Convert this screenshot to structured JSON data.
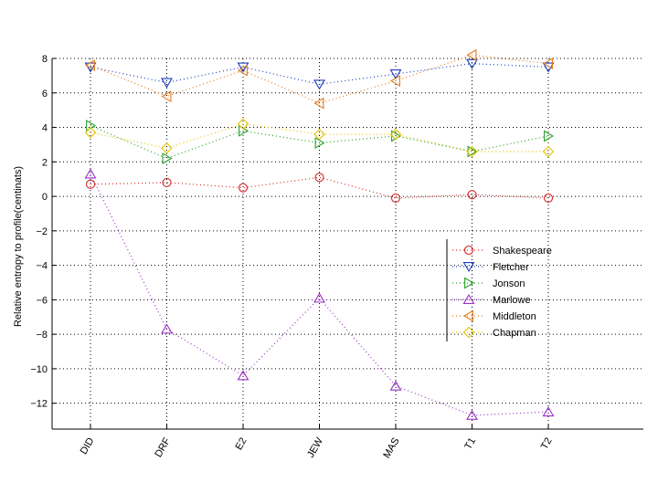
{
  "chart_data": {
    "type": "line",
    "categories": [
      "DID",
      "DRF",
      "E2",
      "JEW",
      "MAS",
      "T1",
      "T2"
    ],
    "ylabel": "Relative entropy to profile(centinats)",
    "ylim": [
      -13.5,
      8
    ],
    "yticks": [
      8,
      6,
      4,
      2,
      0,
      -2,
      -4,
      -6,
      -8,
      -10,
      -12
    ],
    "ytick_labels": [
      "8",
      "6",
      "4",
      "2",
      "0",
      "−2",
      "−4",
      "−6",
      "−8",
      "−10",
      "−12"
    ],
    "grid": true,
    "legend_position": "lower-right",
    "series": [
      {
        "name": "Shakespeare",
        "marker": "circle",
        "color": "#d62728",
        "values": [
          0.7,
          0.8,
          0.5,
          1.1,
          -0.1,
          0.1,
          -0.1
        ]
      },
      {
        "name": "Fletcher",
        "marker": "triangle-down",
        "color": "#1f3fbf",
        "values": [
          7.5,
          6.6,
          7.5,
          6.5,
          7.1,
          7.7,
          7.5
        ]
      },
      {
        "name": "Jonson",
        "marker": "triangle-right",
        "color": "#2ca02c",
        "values": [
          4.1,
          2.2,
          3.8,
          3.1,
          3.5,
          2.6,
          3.5
        ]
      },
      {
        "name": "Marlowe",
        "marker": "triangle-up",
        "color": "#9b30c8",
        "values": [
          1.3,
          -7.7,
          -10.4,
          -5.9,
          -11.0,
          -12.7,
          -12.5
        ]
      },
      {
        "name": "Middleton",
        "marker": "triangle-left",
        "color": "#e07b20",
        "values": [
          7.6,
          5.8,
          7.3,
          5.4,
          6.7,
          8.2,
          7.7
        ]
      },
      {
        "name": "Chapman",
        "marker": "diamond",
        "color": "#e6c200",
        "values": [
          3.7,
          2.8,
          4.2,
          3.6,
          3.6,
          2.6,
          2.6
        ]
      }
    ]
  }
}
